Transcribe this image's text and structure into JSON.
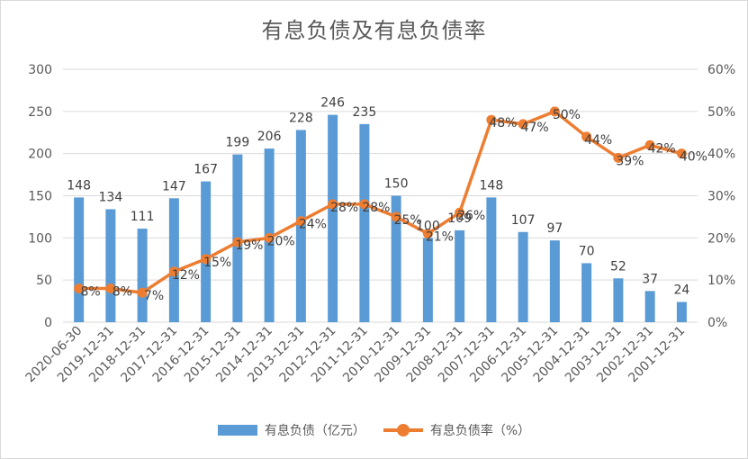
{
  "chart_data": {
    "type": "bar+line",
    "title": "有息负债及有息负债率",
    "categories": [
      "2020-06-30",
      "2019-12-31",
      "2018-12-31",
      "2017-12-31",
      "2016-12-31",
      "2015-12-31",
      "2014-12-31",
      "2013-12-31",
      "2012-12-31",
      "2011-12-31",
      "2010-12-31",
      "2009-12-31",
      "2008-12-31",
      "2007-12-31",
      "2006-12-31",
      "2005-12-31",
      "2004-12-31",
      "2003-12-31",
      "2002-12-31",
      "2001-12-31"
    ],
    "series": [
      {
        "name": "有息负债（亿元）",
        "type": "bar",
        "axis": "left",
        "color": "#5b9bd5",
        "values": [
          148,
          134,
          111,
          147,
          167,
          199,
          206,
          228,
          246,
          235,
          150,
          100,
          109,
          148,
          107,
          97,
          70,
          52,
          37,
          24
        ],
        "labels": [
          "148",
          "134",
          "111",
          "147",
          "167",
          "199",
          "206",
          "228",
          "246",
          "235",
          "150",
          "100",
          "109",
          "148",
          "107",
          "97",
          "70",
          "52",
          "37",
          "24"
        ]
      },
      {
        "name": "有息负债率（%）",
        "type": "line",
        "axis": "right",
        "color": "#ed7d31",
        "values": [
          8,
          8,
          7,
          12,
          15,
          19,
          20,
          24,
          28,
          28,
          25,
          21,
          26,
          48,
          47,
          50,
          44,
          39,
          42,
          40
        ],
        "labels": [
          "8%",
          "8%",
          "7%",
          "12%",
          "15%",
          "19%",
          "20%",
          "24%",
          "28%",
          "28%",
          "25%",
          "21%",
          "26%",
          "48%",
          "47%",
          "50%",
          "44%",
          "39%",
          "42%",
          "40%"
        ]
      }
    ],
    "ylim_left": [
      0,
      300
    ],
    "yticks_left": [
      "0",
      "50",
      "100",
      "150",
      "200",
      "250",
      "300"
    ],
    "ylim_right": [
      0,
      60
    ],
    "yticks_right": [
      "0%",
      "10%",
      "20%",
      "30%",
      "40%",
      "50%",
      "60%"
    ],
    "grid": true,
    "legend_position": "bottom"
  }
}
